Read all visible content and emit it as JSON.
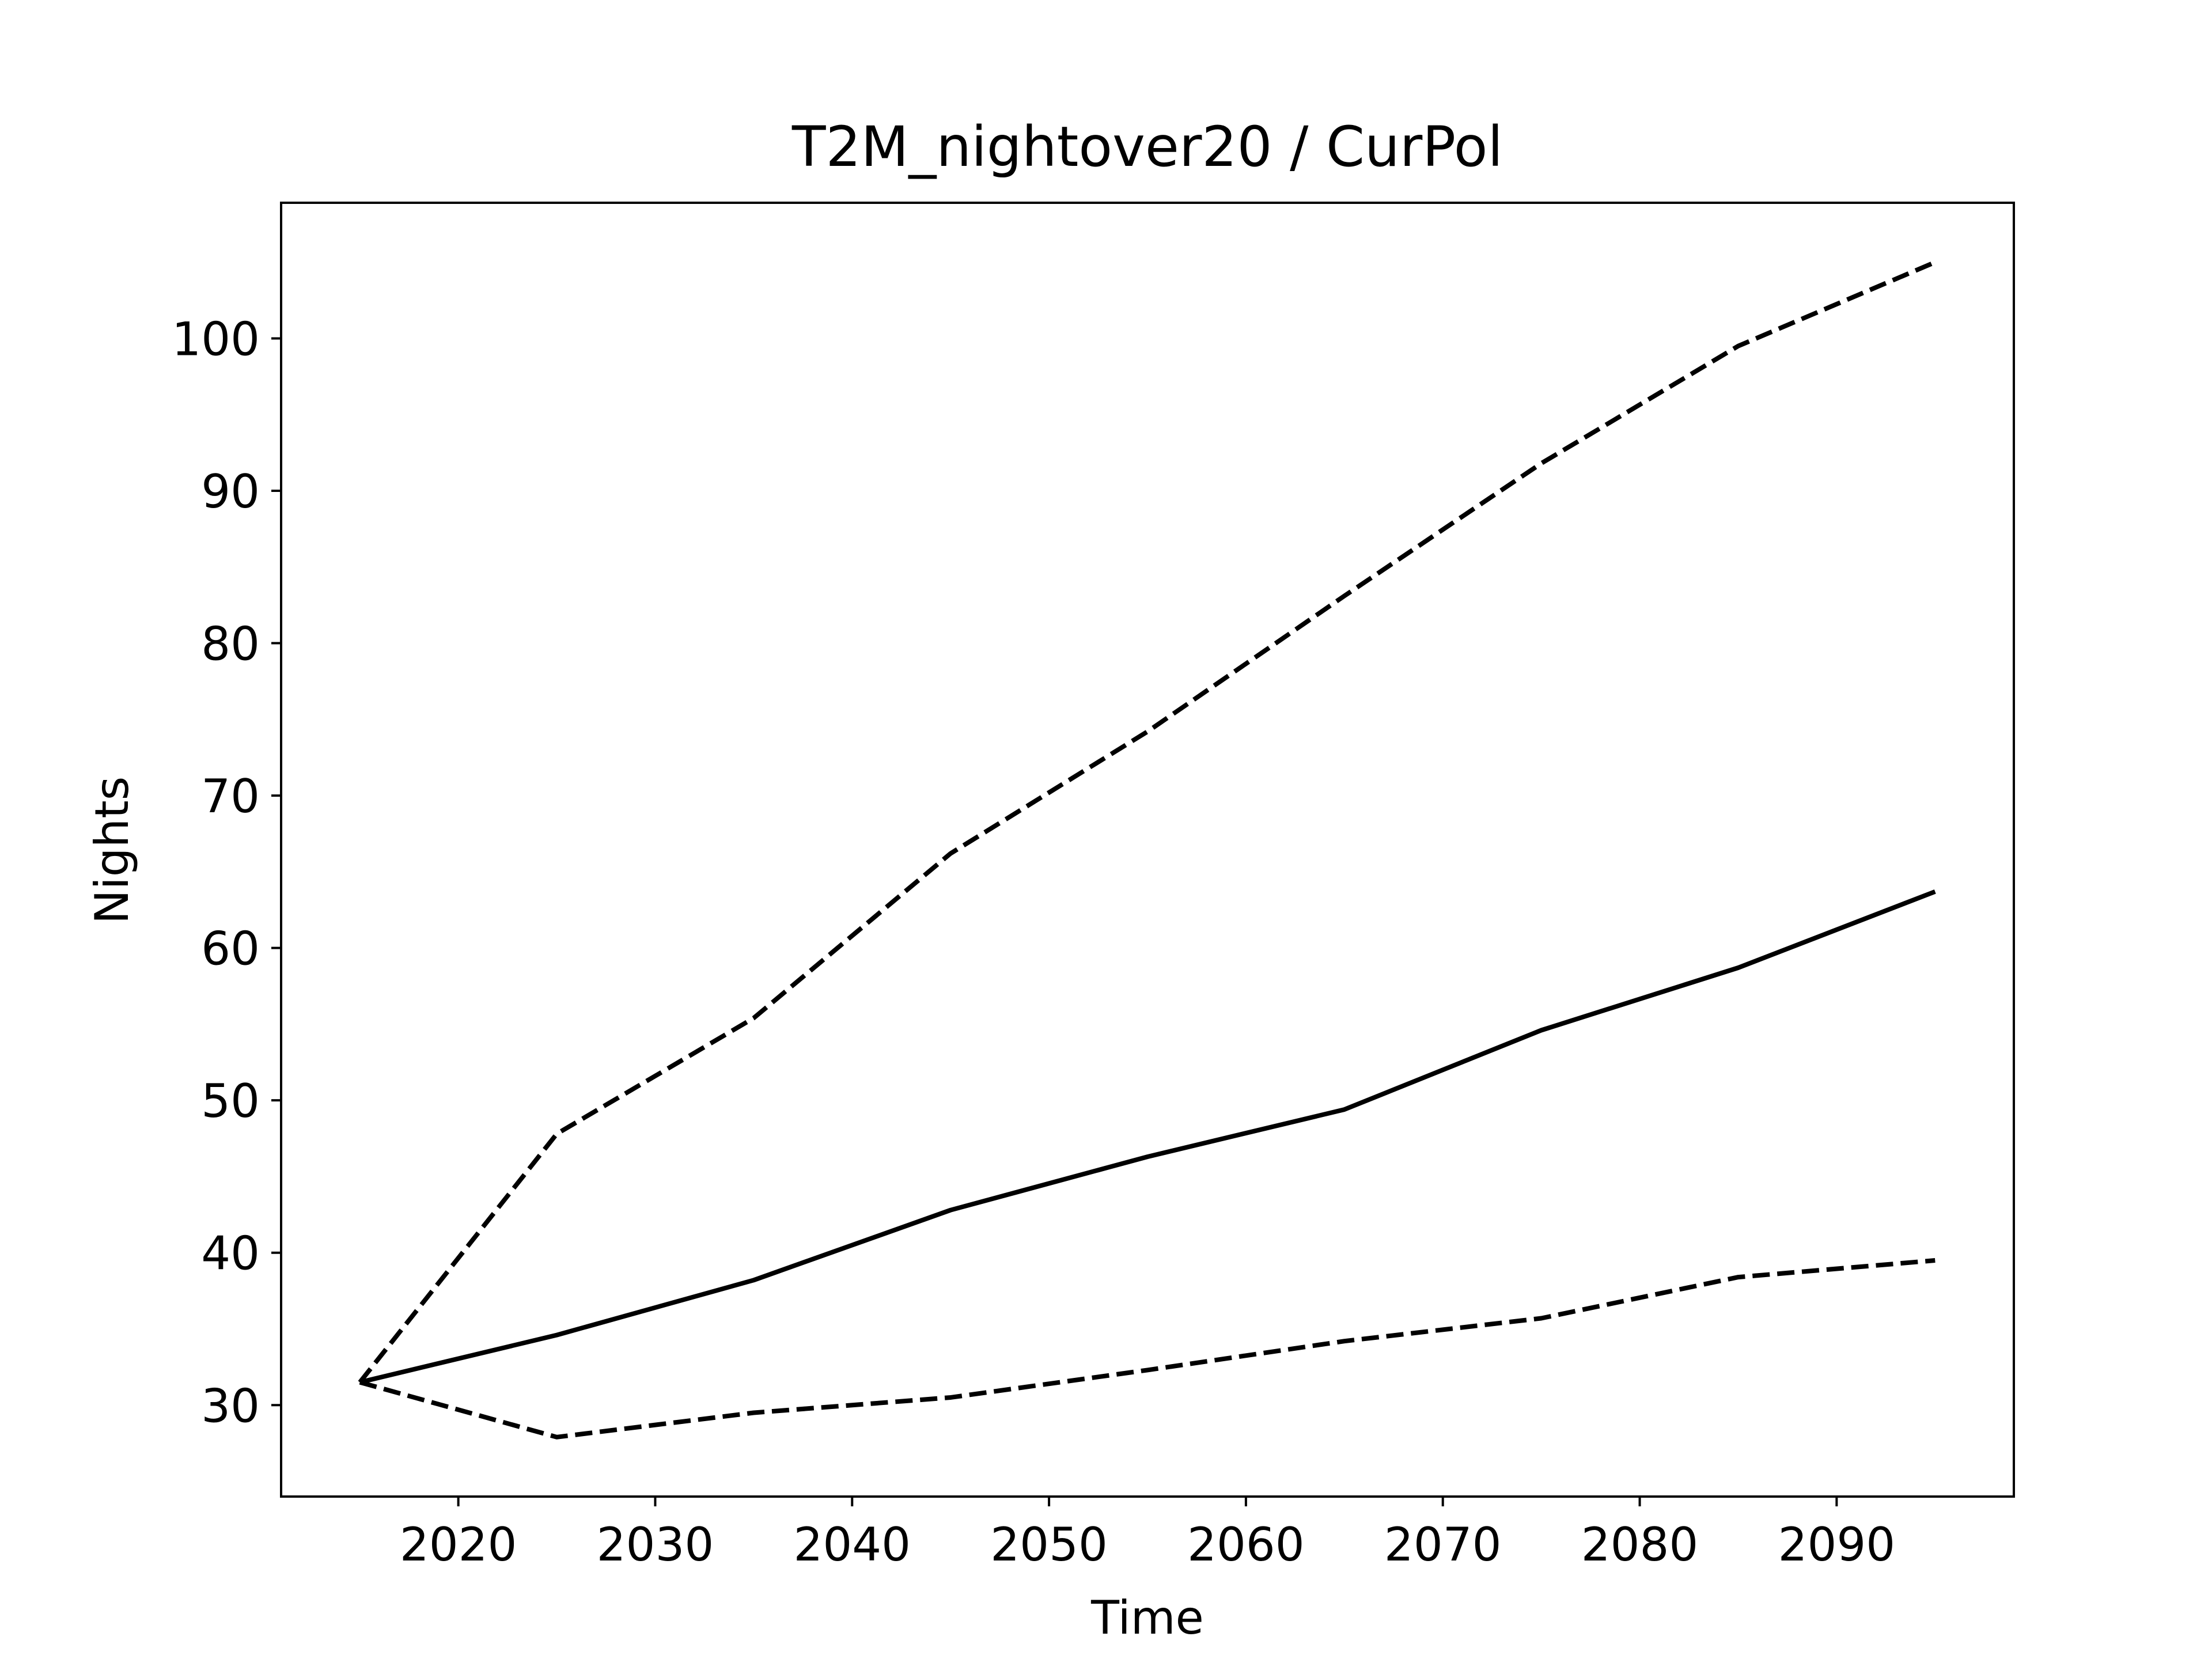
{
  "chart_data": {
    "type": "line",
    "title": "T2M_nightover20 / CurPol",
    "xlabel": "Time",
    "ylabel": "Nights",
    "x": [
      2015,
      2025,
      2035,
      2045,
      2055,
      2065,
      2075,
      2085,
      2095
    ],
    "xlim": [
      2011,
      2099
    ],
    "ylim": [
      24.0,
      108.9
    ],
    "xticks": [
      2020,
      2030,
      2040,
      2050,
      2060,
      2070,
      2080,
      2090
    ],
    "yticks": [
      30,
      40,
      50,
      60,
      70,
      80,
      90,
      100
    ],
    "grid": false,
    "series": [
      {
        "style": "solid",
        "color": "#000000",
        "values": [
          31.5,
          34.6,
          38.2,
          42.8,
          46.3,
          49.4,
          54.6,
          58.7,
          63.7
        ]
      },
      {
        "style": "dashed",
        "color": "#000000",
        "values": [
          31.5,
          47.8,
          55.4,
          66.2,
          74.2,
          83.1,
          91.8,
          99.5,
          105.0
        ]
      },
      {
        "style": "dashed",
        "color": "#000000",
        "values": [
          31.5,
          27.9,
          29.5,
          30.5,
          32.3,
          34.2,
          35.7,
          38.4,
          39.5
        ]
      }
    ]
  }
}
